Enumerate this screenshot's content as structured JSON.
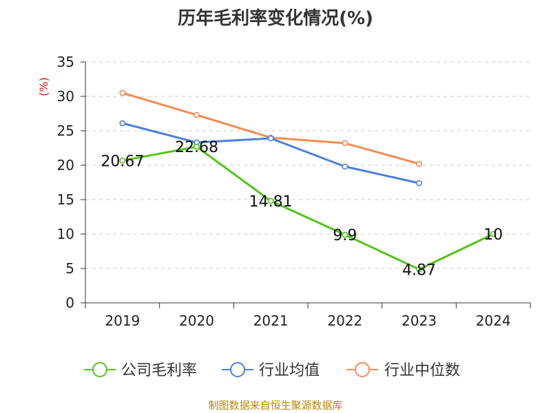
{
  "chart_data": {
    "type": "line",
    "title": "历年毛利率变化情况(%)",
    "ylabel": "(%)",
    "xlabel": "",
    "ylim": [
      0,
      35
    ],
    "yticks": [
      0,
      5,
      10,
      15,
      20,
      25,
      30,
      35
    ],
    "categories": [
      "2019",
      "2020",
      "2021",
      "2022",
      "2023",
      "2024"
    ],
    "grid": true,
    "legend_position": "bottom",
    "series": [
      {
        "name": "公司毛利率",
        "color": "#52c41a",
        "values": [
          20.67,
          22.68,
          14.81,
          9.9,
          4.87,
          10
        ],
        "labels": [
          "20.67",
          "22.68",
          "14.81",
          "9.9",
          "4.87",
          "10"
        ]
      },
      {
        "name": "行业均值",
        "color": "#4a7fd8",
        "values": [
          26.1,
          23.3,
          23.9,
          19.8,
          17.4,
          null
        ]
      },
      {
        "name": "行业中位数",
        "color": "#f28b54",
        "values": [
          30.5,
          27.3,
          24.0,
          23.2,
          20.2,
          null
        ]
      }
    ]
  },
  "footer": {
    "source": "制图数据来自恒生聚源数据库"
  }
}
